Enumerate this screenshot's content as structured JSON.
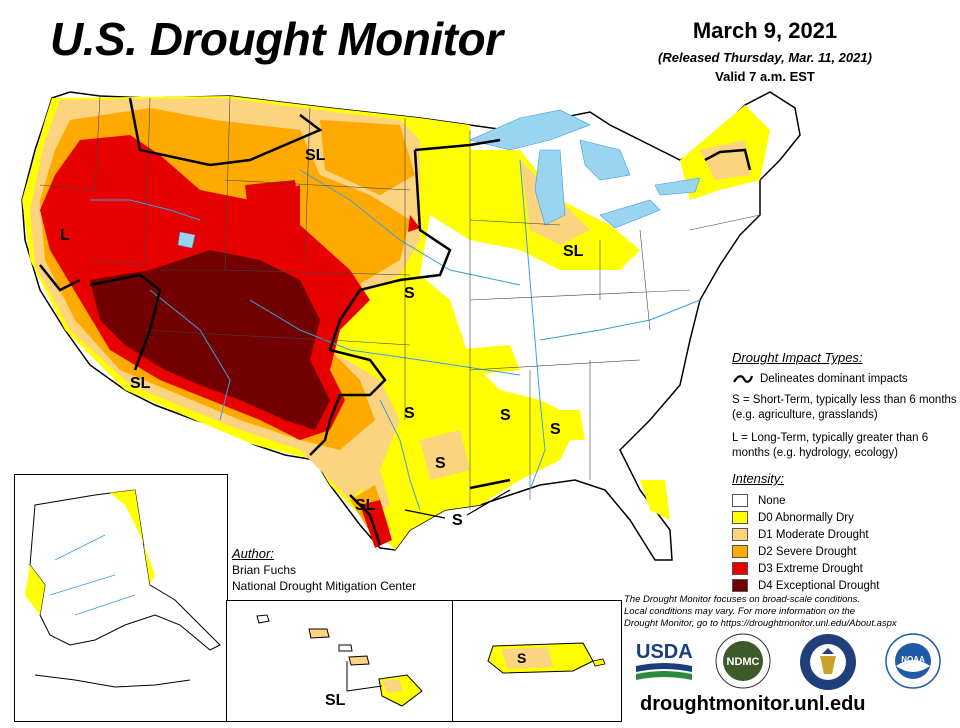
{
  "header": {
    "title": "U.S. Drought Monitor",
    "date": "March 9, 2021",
    "released": "(Released Thursday, Mar. 11, 2021)",
    "valid": "Valid 7 a.m. EST"
  },
  "legend": {
    "impact_header": "Drought Impact Types:",
    "impact_line": "Delineates dominant impacts",
    "short_term": "S = Short-Term, typically less than 6 months (e.g. agriculture, grasslands)",
    "long_term": "L = Long-Term, typically greater than 6 months (e.g. hydrology, ecology)",
    "intensity_header": "Intensity:",
    "categories": [
      {
        "label": "None",
        "color": "#ffffff"
      },
      {
        "label": "D0 Abnormally Dry",
        "color": "#ffff00"
      },
      {
        "label": "D1 Moderate Drought",
        "color": "#fcd37f"
      },
      {
        "label": "D2 Severe Drought",
        "color": "#ffaa00"
      },
      {
        "label": "D3 Extreme Drought",
        "color": "#e60000"
      },
      {
        "label": "D4 Exceptional Drought",
        "color": "#730000"
      }
    ]
  },
  "author": {
    "header": "Author:",
    "name": "Brian Fuchs",
    "org": "National Drought Mitigation Center"
  },
  "disclaimer": {
    "line1": "The Drought Monitor focuses on broad-scale conditions.",
    "line2": "Local conditions may vary. For more information on the",
    "line3": "Drought Monitor, go to https://droughtmonitor.unl.edu/About.aspx"
  },
  "map_labels": {
    "sl_north": "SL",
    "l_west": "L",
    "s_plains": "S",
    "sl_midwest": "SL",
    "sl_southwest": "SL",
    "s_texas1": "S",
    "s_texas2": "S",
    "s_south1": "S",
    "s_south2": "S",
    "sl_texas": "SL",
    "s_gulf": "S",
    "sl_hawaii": "SL",
    "s_pr": "S"
  },
  "logos": {
    "usda": "USDA",
    "ndmc": "NDMC",
    "commerce": "DEPT. OF COMMERCE",
    "noaa": "NOAA"
  },
  "site": "droughtmonitor.unl.edu",
  "colors": {
    "d0": "#ffff00",
    "d1": "#fcd37f",
    "d2": "#ffaa00",
    "d3": "#e60000",
    "d4": "#730000",
    "water": "#9bd4f0",
    "river": "#3a9ee0"
  }
}
